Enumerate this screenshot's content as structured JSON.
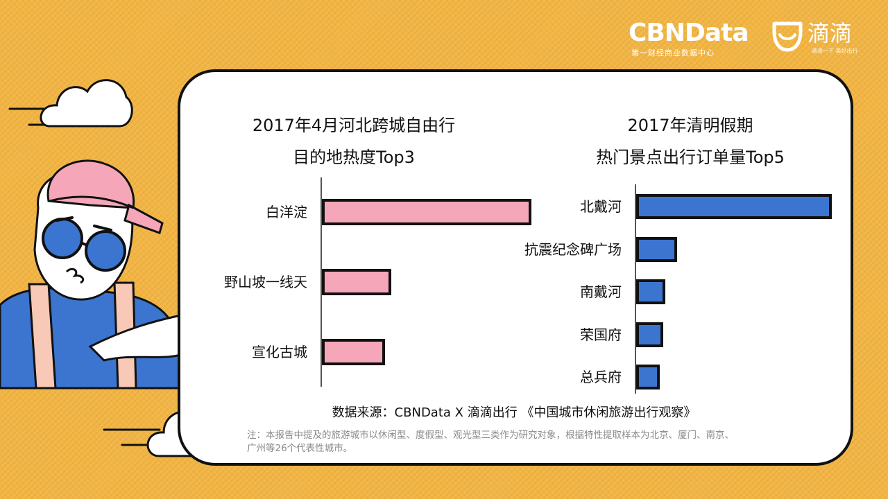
{
  "header": {
    "brand_name": "CBNData",
    "brand_sub": "第一财经商业数据中心",
    "partner_name": "滴滴",
    "partner_slogan": "滴滴一下 美好出行"
  },
  "chart_data": [
    {
      "type": "bar",
      "orientation": "horizontal",
      "title_lines": [
        "2017年4月河北跨城自由行",
        "目的地热度Top3"
      ],
      "categories": [
        "白洋淀",
        "野山坡一线天",
        "宣化古城"
      ],
      "values": [
        100,
        33,
        30
      ],
      "color": "#f5a6b8"
    },
    {
      "type": "bar",
      "orientation": "horizontal",
      "title_lines": [
        "2017年清明假期",
        "热门景点出行订单量Top5"
      ],
      "categories": [
        "北戴河",
        "抗震纪念碑广场",
        "南戴河",
        "荣国府",
        "总兵府"
      ],
      "values": [
        100,
        21,
        15,
        14,
        12
      ],
      "color": "#3b75d0"
    }
  ],
  "footer": {
    "source": "数据来源：CBNData X 滴滴出行  《中国城市休闲旅游出行观察》",
    "note_line1": "注：本报告中提及的旅游城市以休闲型、度假型、观光型三类作为研究对象，根据特性提取样本为北京、厦门、南京、",
    "note_line2": "广州等26个代表性城市。"
  }
}
